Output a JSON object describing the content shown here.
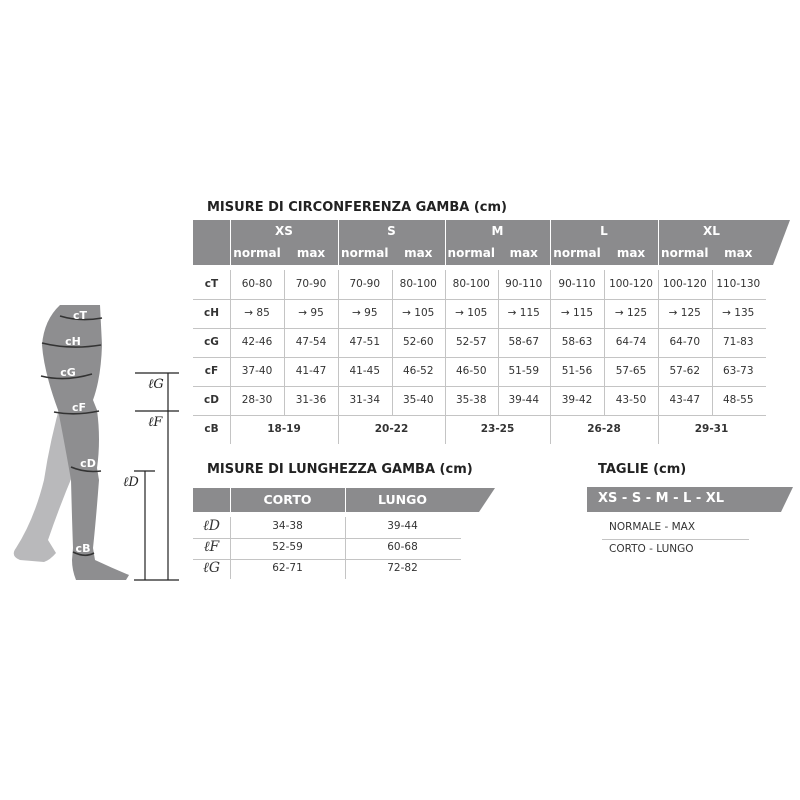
{
  "circumference": {
    "title": "MISURE DI CIRCONFERENZA GAMBA (cm)",
    "sizes": [
      "XS",
      "S",
      "M",
      "L",
      "XL"
    ],
    "sub_headers": [
      "normal",
      "max"
    ],
    "rows": [
      {
        "label": "cT",
        "values": [
          "60-80",
          "70-90",
          "70-90",
          "80-100",
          "80-100",
          "90-110",
          "90-110",
          "100-120",
          "100-120",
          "110-130"
        ]
      },
      {
        "label": "cH",
        "values": [
          "→ 85",
          "→ 95",
          "→ 95",
          "→ 105",
          "→ 105",
          "→ 115",
          "→ 115",
          "→ 125",
          "→ 125",
          "→ 135"
        ]
      },
      {
        "label": "cG",
        "values": [
          "42-46",
          "47-54",
          "47-51",
          "52-60",
          "52-57",
          "58-67",
          "58-63",
          "64-74",
          "64-70",
          "71-83"
        ]
      },
      {
        "label": "cF",
        "values": [
          "37-40",
          "41-47",
          "41-45",
          "46-52",
          "46-50",
          "51-59",
          "51-56",
          "57-65",
          "57-62",
          "63-73"
        ]
      },
      {
        "label": "cD",
        "values": [
          "28-30",
          "31-36",
          "31-34",
          "35-40",
          "35-38",
          "39-44",
          "39-42",
          "43-50",
          "43-47",
          "48-55"
        ]
      }
    ],
    "cb_row": {
      "label": "cB",
      "values": [
        "18-19",
        "20-22",
        "23-25",
        "26-28",
        "29-31"
      ]
    }
  },
  "length": {
    "title": "MISURE DI LUNGHEZZA GAMBA (cm)",
    "columns": [
      "CORTO",
      "LUNGO"
    ],
    "rows": [
      {
        "label": "ℓD",
        "values": [
          "34-38",
          "39-44"
        ]
      },
      {
        "label": "ℓF",
        "values": [
          "52-59",
          "60-68"
        ]
      },
      {
        "label": "ℓG",
        "values": [
          "62-71",
          "72-82"
        ]
      }
    ]
  },
  "sizes_legend": {
    "title": "TAGLIE (cm)",
    "band": "XS - S - M - L - XL",
    "lines": [
      "NORMALE - MAX",
      "CORTO - LUNGO"
    ]
  },
  "leg_diagram": {
    "circ_labels": [
      "cT",
      "cH",
      "cG",
      "cF",
      "cD",
      "cB"
    ],
    "length_labels": [
      "ℓG",
      "ℓF",
      "ℓD"
    ]
  },
  "colors": {
    "header": "#8b8b8d",
    "leg_front": "#8e8e90",
    "leg_back": "#b9b9bb"
  }
}
